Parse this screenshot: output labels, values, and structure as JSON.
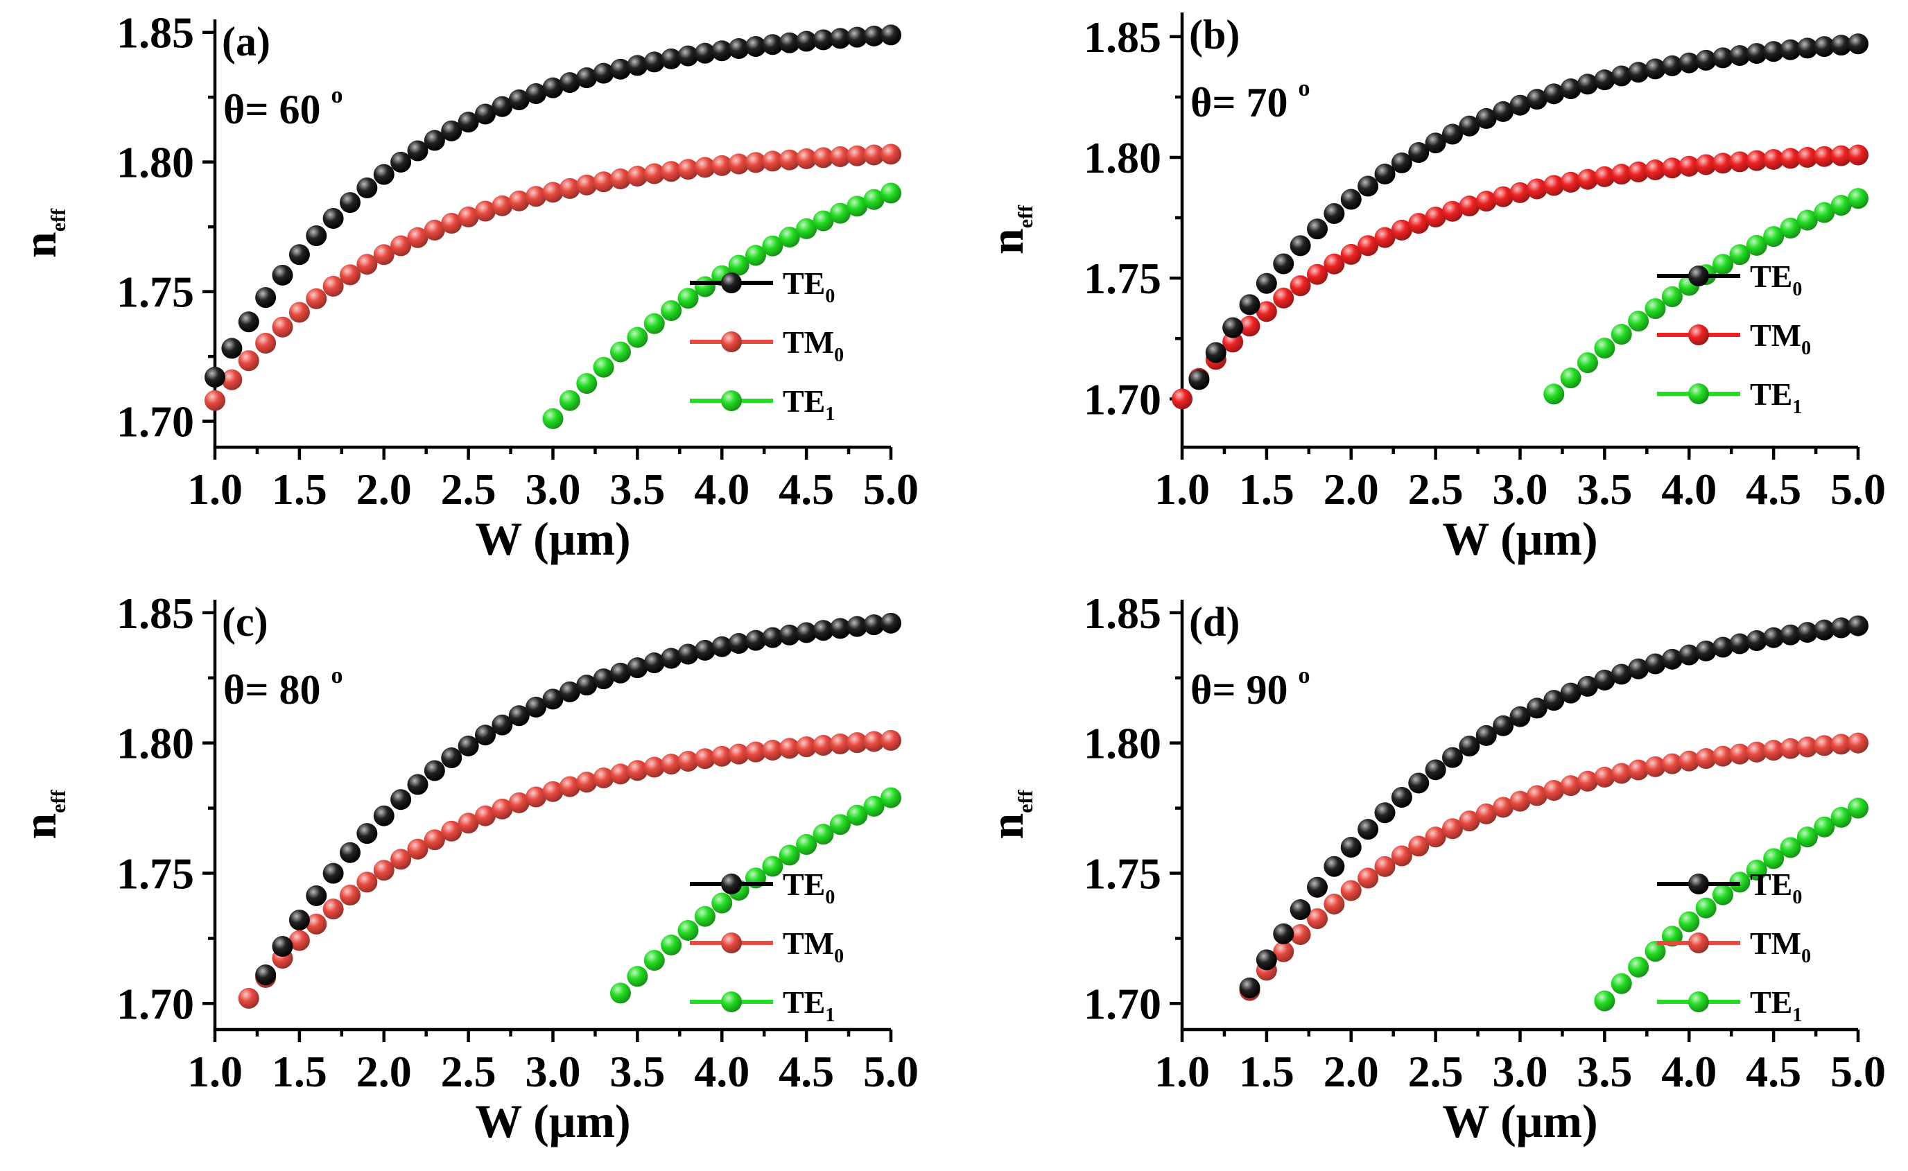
{
  "chart_data": [
    {
      "type": "scatter",
      "panel_label": "(a)",
      "angle_label": "θ= 60 °",
      "angle_prefix": "θ= 60 ",
      "angle_unit": "o",
      "xlabel": "W (μm)",
      "ylabel_main": "n",
      "ylabel_sub": "eff",
      "xlim": [
        1.0,
        5.0
      ],
      "ylim": [
        1.69,
        1.855
      ],
      "xticks": [
        "1.0",
        "1.5",
        "2.0",
        "2.5",
        "3.0",
        "3.5",
        "4.0",
        "4.5",
        "5.0"
      ],
      "yticks": [
        "1.70",
        "1.75",
        "1.80",
        "1.85"
      ],
      "legend_position": "middle-right",
      "series": [
        {
          "name": "TE0",
          "label_main": "TE",
          "label_sub": "0",
          "color": "#000000",
          "x_start": 1.0,
          "x_end": 5.0,
          "step": 0.1,
          "y_start": 1.717,
          "y_end": 1.849,
          "k": 0.85
        },
        {
          "name": "TM0",
          "label_main": "TM",
          "label_sub": "0",
          "color": "#e8493f",
          "x_start": 1.0,
          "x_end": 5.0,
          "step": 0.1,
          "y_start": 1.708,
          "y_end": 1.803,
          "k": 0.85
        },
        {
          "name": "TE1",
          "label_main": "TE",
          "label_sub": "1",
          "color": "#22dd22",
          "x_start": 3.0,
          "x_end": 5.0,
          "step": 0.1,
          "y_start": 1.701,
          "y_end": 1.788,
          "k": 0.55
        }
      ]
    },
    {
      "type": "scatter",
      "panel_label": "(b)",
      "angle_label": "θ= 70 °",
      "angle_prefix": "θ= 70 ",
      "angle_unit": "o",
      "xlabel": "W (μm)",
      "ylabel_main": "n",
      "ylabel_sub": "eff",
      "xlim": [
        1.0,
        5.0
      ],
      "ylim": [
        1.68,
        1.86
      ],
      "xticks": [
        "1.0",
        "1.5",
        "2.0",
        "2.5",
        "3.0",
        "3.5",
        "4.0",
        "4.5",
        "5.0"
      ],
      "yticks": [
        "1.70",
        "1.75",
        "1.80",
        "1.85"
      ],
      "legend_position": "middle-right",
      "series": [
        {
          "name": "TE0",
          "label_main": "TE",
          "label_sub": "0",
          "color": "#000000",
          "x_start": 1.1,
          "x_end": 5.0,
          "step": 0.1,
          "y_start": 1.708,
          "y_end": 1.847,
          "k": 0.8
        },
        {
          "name": "TM0",
          "label_main": "TM",
          "label_sub": "0",
          "color": "#ee2222",
          "x_start": 1.0,
          "x_end": 5.0,
          "step": 0.1,
          "y_start": 1.7,
          "y_end": 1.801,
          "k": 0.85
        },
        {
          "name": "TE1",
          "label_main": "TE",
          "label_sub": "1",
          "color": "#22dd22",
          "x_start": 3.2,
          "x_end": 5.0,
          "step": 0.1,
          "y_start": 1.702,
          "y_end": 1.783,
          "k": 0.5
        }
      ]
    },
    {
      "type": "scatter",
      "panel_label": "(c)",
      "angle_label": "θ= 80 °",
      "angle_prefix": "θ= 80 ",
      "angle_unit": "o",
      "xlabel": "W (μm)",
      "ylabel_main": "n",
      "ylabel_sub": "eff",
      "xlim": [
        1.0,
        5.0
      ],
      "ylim": [
        1.69,
        1.855
      ],
      "xticks": [
        "1.0",
        "1.5",
        "2.0",
        "2.5",
        "3.0",
        "3.5",
        "4.0",
        "4.5",
        "5.0"
      ],
      "yticks": [
        "1.70",
        "1.75",
        "1.80",
        "1.85"
      ],
      "legend_position": "lower-right",
      "series": [
        {
          "name": "TE0",
          "label_main": "TE",
          "label_sub": "0",
          "color": "#000000",
          "x_start": 1.3,
          "x_end": 5.0,
          "step": 0.1,
          "y_start": 1.711,
          "y_end": 1.846,
          "k": 0.8
        },
        {
          "name": "TM0",
          "label_main": "TM",
          "label_sub": "0",
          "color": "#e8493f",
          "x_start": 1.2,
          "x_end": 5.0,
          "step": 0.1,
          "y_start": 1.702,
          "y_end": 1.801,
          "k": 0.8
        },
        {
          "name": "TE1",
          "label_main": "TE",
          "label_sub": "1",
          "color": "#22dd22",
          "x_start": 3.4,
          "x_end": 5.0,
          "step": 0.1,
          "y_start": 1.704,
          "y_end": 1.779,
          "k": 0.45
        }
      ]
    },
    {
      "type": "scatter",
      "panel_label": "(d)",
      "angle_label": "θ= 90 °",
      "angle_prefix": "θ= 90 ",
      "angle_unit": "o",
      "xlabel": "W (μm)",
      "ylabel_main": "n",
      "ylabel_sub": "eff",
      "xlim": [
        1.0,
        5.0
      ],
      "ylim": [
        1.69,
        1.855
      ],
      "xticks": [
        "1.0",
        "1.5",
        "2.0",
        "2.5",
        "3.0",
        "3.5",
        "4.0",
        "4.5",
        "5.0"
      ],
      "yticks": [
        "1.70",
        "1.75",
        "1.80",
        "1.85"
      ],
      "legend_position": "lower-right",
      "series": [
        {
          "name": "TE0",
          "label_main": "TE",
          "label_sub": "0",
          "color": "#000000",
          "x_start": 1.4,
          "x_end": 5.0,
          "step": 0.1,
          "y_start": 1.706,
          "y_end": 1.845,
          "k": 0.75
        },
        {
          "name": "TM0",
          "label_main": "TM",
          "label_sub": "0",
          "color": "#e8493f",
          "x_start": 1.4,
          "x_end": 5.0,
          "step": 0.1,
          "y_start": 1.705,
          "y_end": 1.8,
          "k": 0.8
        },
        {
          "name": "TE1",
          "label_main": "TE",
          "label_sub": "1",
          "color": "#22dd22",
          "x_start": 3.5,
          "x_end": 5.0,
          "step": 0.1,
          "y_start": 1.701,
          "y_end": 1.775,
          "k": 0.45
        }
      ]
    }
  ]
}
